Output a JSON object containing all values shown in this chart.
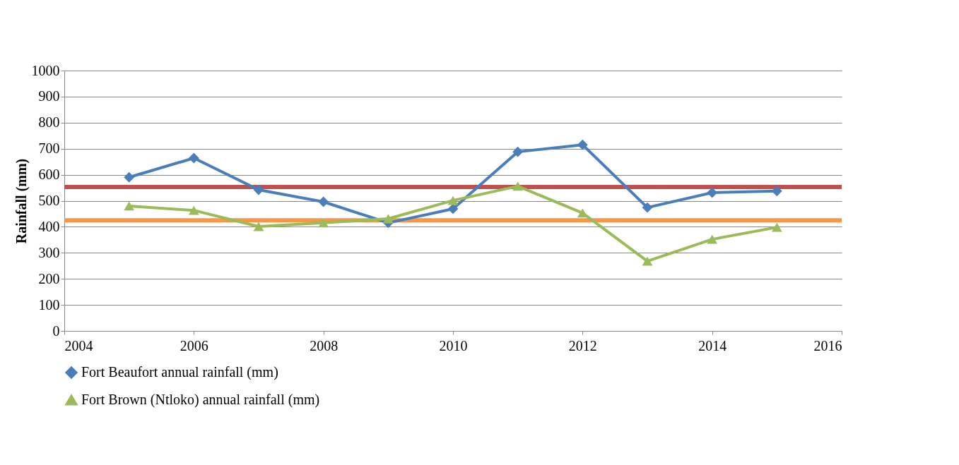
{
  "chart_data": {
    "type": "line",
    "ylabel": "Rainfall (mm)",
    "x": [
      2005,
      2006,
      2007,
      2008,
      2009,
      2010,
      2011,
      2012,
      2013,
      2014,
      2015
    ],
    "series": [
      {
        "name": "Fort Beaufort annual rainfall (mm)",
        "color": "#4a7ebb",
        "marker": "diamond",
        "values": [
          590,
          664,
          542,
          496,
          415,
          469,
          688,
          715,
          474,
          531,
          537
        ]
      },
      {
        "name": "Fort Brown (Ntloko) annual rainfall (mm)",
        "color": "#9bbb59",
        "marker": "triangle",
        "values": [
          480,
          463,
          401,
          415,
          431,
          501,
          556,
          453,
          268,
          352,
          398
        ]
      }
    ],
    "ref_lines": [
      {
        "axis": "y",
        "value": 553,
        "color": "#c0504d"
      },
      {
        "axis": "y",
        "value": 425,
        "color": "#f79646"
      }
    ],
    "xlim": [
      2004,
      2016
    ],
    "xticks": [
      2004,
      2006,
      2008,
      2010,
      2012,
      2014,
      2016
    ],
    "ylim": [
      0,
      1000
    ],
    "yticks": [
      0,
      100,
      200,
      300,
      400,
      500,
      600,
      700,
      800,
      900,
      1000
    ],
    "grid": "y",
    "legend": "bottom",
    "line_style": "solid"
  }
}
